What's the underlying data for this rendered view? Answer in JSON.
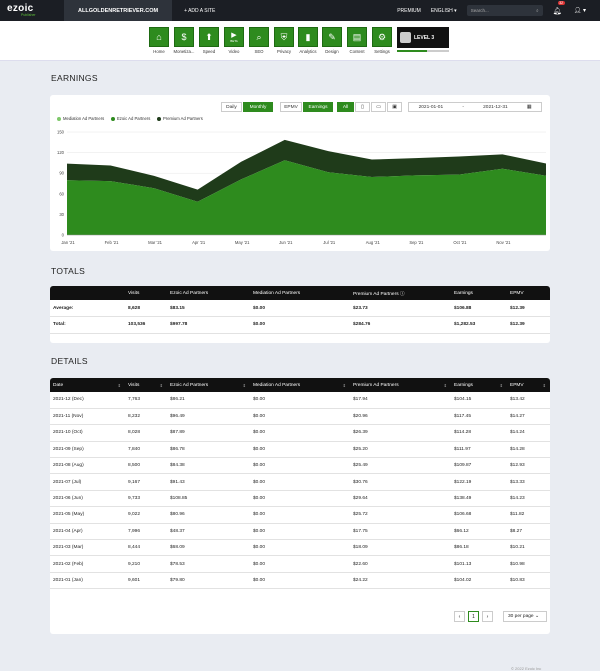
{
  "topbar": {
    "brand": "ezoic",
    "brand_sub": "Publisher",
    "site": "ALLGOLDENRETRIEVER.COM",
    "add_site": "+ ADD A SITE",
    "premium": "PREMIUM",
    "language": "ENGLISH ▾",
    "search_placeholder": "Search...",
    "notifications": "32"
  },
  "iconbar": {
    "items": [
      {
        "label": "Home",
        "icon": "home-icon",
        "glyph": "⌂"
      },
      {
        "label": "Monetiza...",
        "icon": "dollar-icon",
        "glyph": "$"
      },
      {
        "label": "Speed",
        "icon": "rocket-icon",
        "glyph": "⬆"
      },
      {
        "label": "Video",
        "icon": "video-icon",
        "glyph": "▶",
        "tag": "BETA"
      },
      {
        "label": "SEO",
        "icon": "magnifier-icon",
        "glyph": "⌕"
      },
      {
        "label": "Privacy",
        "icon": "shield-icon",
        "glyph": "⛨"
      },
      {
        "label": "Analytics",
        "icon": "chart-icon",
        "glyph": "▮"
      },
      {
        "label": "Design",
        "icon": "pencil-icon",
        "glyph": "✎"
      },
      {
        "label": "Content",
        "icon": "document-icon",
        "glyph": "▤"
      },
      {
        "label": "Settings",
        "icon": "gear-icon",
        "glyph": "⚙"
      }
    ],
    "level": "LEVEL 3"
  },
  "earnings": {
    "title": "EARNINGS",
    "controls": {
      "daily": "Daily",
      "monthly": "Monthly",
      "epmv": "EPMV",
      "earnings": "Earnings",
      "all": "All",
      "date_start": "2021-01-01",
      "date_sep": "-",
      "date_end": "2021-12-31"
    },
    "colors": {
      "mediation": "#7ec86a",
      "ezoic": "#2e8b1e",
      "premium": "#1f3b1a"
    }
  },
  "chart_data": {
    "type": "area",
    "stacked": true,
    "x": [
      "Jan '21",
      "Feb '21",
      "Mar '21",
      "Apr '21",
      "May '21",
      "Jun '21",
      "Jul '21",
      "Aug '21",
      "Sep '21",
      "Oct '21",
      "Nov '21",
      "Dec '21"
    ],
    "xticks": [
      "Jan '21",
      "Feb '21",
      "Mar '21",
      "Apr '21",
      "May '21",
      "Jun '21",
      "Jul '21",
      "Aug '21",
      "Sep '21",
      "Oct '21",
      "Nov '21"
    ],
    "series": [
      {
        "name": "Mediation Ad Partners",
        "values": [
          0,
          0,
          0,
          0,
          0,
          0,
          0,
          0,
          0,
          0,
          0,
          0
        ]
      },
      {
        "name": "Ezoic Ad Partners",
        "values": [
          79.8,
          78.53,
          68.09,
          48.37,
          80.96,
          108.85,
          91.43,
          84.38,
          86.78,
          87.89,
          96.49,
          86.21
        ]
      },
      {
        "name": "Premium Ad Partners",
        "values": [
          24.22,
          22.6,
          18.09,
          17.75,
          25.72,
          29.64,
          30.76,
          25.49,
          25.2,
          26.39,
          20.96,
          17.94
        ]
      }
    ],
    "ylim": [
      0,
      150
    ],
    "yticks": [
      "0",
      "30",
      "60",
      "90",
      "120",
      "150"
    ],
    "legend": "top-left"
  },
  "totals": {
    "title": "TOTALS",
    "headers": [
      "",
      "Visits",
      "Ezoic Ad Partners",
      "Mediation Ad Partners",
      "Premium Ad Partners",
      "Earnings",
      "EPMV"
    ],
    "rows": [
      [
        "Average:",
        "8,628",
        "$83.15",
        "$0.00",
        "$23.73",
        "$106.88",
        "$12.39"
      ],
      [
        "Total:",
        "103,536",
        "$997.78",
        "$0.00",
        "$284.76",
        "$1,282.53",
        "$12.39"
      ]
    ]
  },
  "details": {
    "title": "DETAILS",
    "headers": [
      "Date",
      "Visits",
      "Ezoic Ad Partners",
      "Mediation Ad Partners",
      "Premium Ad Partners",
      "Earnings",
      "EPMV"
    ],
    "rows": [
      [
        "2021-12 (Dec)",
        "7,763",
        "$86.21",
        "$0.00",
        "$17.94",
        "$104.15",
        "$13.42"
      ],
      [
        "2021-11 (Nov)",
        "8,232",
        "$96.49",
        "$0.00",
        "$20.96",
        "$117.45",
        "$14.27"
      ],
      [
        "2021-10 (Oct)",
        "8,028",
        "$87.89",
        "$0.00",
        "$26.39",
        "$114.28",
        "$14.24"
      ],
      [
        "2021-09 (Sep)",
        "7,840",
        "$86.78",
        "$0.00",
        "$25.20",
        "$111.97",
        "$14.28"
      ],
      [
        "2021-08 (Aug)",
        "8,500",
        "$84.38",
        "$0.00",
        "$25.49",
        "$109.87",
        "$12.93"
      ],
      [
        "2021-07 (Jul)",
        "9,167",
        "$91.43",
        "$0.00",
        "$30.76",
        "$122.19",
        "$13.33"
      ],
      [
        "2021-06 (Jun)",
        "9,733",
        "$108.85",
        "$0.00",
        "$29.64",
        "$138.49",
        "$14.23"
      ],
      [
        "2021-05 (May)",
        "9,022",
        "$80.96",
        "$0.00",
        "$25.72",
        "$106.68",
        "$11.82"
      ],
      [
        "2021-04 (Apr)",
        "7,996",
        "$48.37",
        "$0.00",
        "$17.75",
        "$66.12",
        "$8.27"
      ],
      [
        "2021-03 (Mar)",
        "8,444",
        "$68.09",
        "$0.00",
        "$18.09",
        "$86.18",
        "$10.21"
      ],
      [
        "2021-02 (Feb)",
        "9,210",
        "$78.53",
        "$0.00",
        "$22.60",
        "$101.13",
        "$10.98"
      ],
      [
        "2021-01 (Jan)",
        "9,601",
        "$79.80",
        "$0.00",
        "$24.22",
        "$104.02",
        "$10.83"
      ]
    ],
    "pager": {
      "prev": "‹",
      "page": "1",
      "next": "›",
      "per_page": "30 per page"
    }
  },
  "footer": "© 2022 Ezoic Inc"
}
